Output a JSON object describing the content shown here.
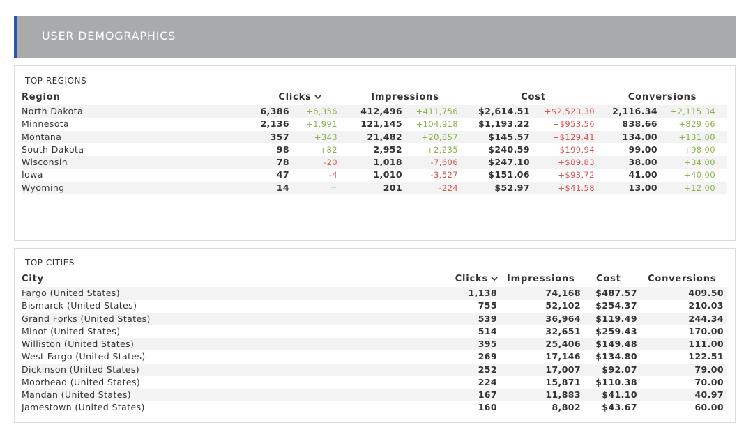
{
  "header": {
    "title": "USER DEMOGRAPHICS"
  },
  "regions": {
    "title": "TOP REGIONS",
    "headers": [
      "Region",
      "Clicks",
      "Impressions",
      "Cost",
      "Conversions"
    ],
    "delta_up_colors": [
      "#8ab34a",
      "#8ab34a",
      "#d9534f",
      "#8ab34a"
    ],
    "delta_down_colors": [
      "#d9534f",
      "#d9534f",
      "#8ab34a",
      "#d9534f"
    ],
    "rows": [
      [
        "North Dakota",
        "6,386",
        "+6,356",
        "412,496",
        "+411,756",
        "$2,614.51",
        "+$2,523.30",
        "2,116.34",
        "+2,115.34"
      ],
      [
        "Minnesota",
        "2,136",
        "+1,991",
        "121,145",
        "+104,918",
        "$1,193.22",
        "+$953.56",
        "838.66",
        "+829.66"
      ],
      [
        "Montana",
        "357",
        "+343",
        "21,482",
        "+20,857",
        "$145.57",
        "+$129.41",
        "134.00",
        "+131.00"
      ],
      [
        "South Dakota",
        "98",
        "+82",
        "2,952",
        "+2,235",
        "$240.59",
        "+$199.94",
        "99.00",
        "+98.00"
      ],
      [
        "Wisconsin",
        "78",
        "-20",
        "1,018",
        "-7,606",
        "$247.10",
        "+$89.83",
        "38.00",
        "+34.00"
      ],
      [
        "Iowa",
        "47",
        "-4",
        "1,010",
        "-3,527",
        "$151.06",
        "+$93.72",
        "41.00",
        "+40.00"
      ],
      [
        "Wyoming",
        "14",
        "=",
        "201",
        "-224",
        "$52.97",
        "+$41.58",
        "13.00",
        "+12.00"
      ]
    ]
  },
  "cities": {
    "title": "TOP CITIES",
    "headers": [
      "City",
      "Clicks",
      "Impressions",
      "Cost",
      "Conversions"
    ],
    "rows": [
      [
        "Fargo (United States)",
        "1,138",
        "74,168",
        "$487.57",
        "409.50"
      ],
      [
        "Bismarck (United States)",
        "755",
        "52,102",
        "$254.37",
        "210.03"
      ],
      [
        "Grand Forks (United States)",
        "539",
        "36,964",
        "$119.49",
        "244.34"
      ],
      [
        "Minot (United States)",
        "514",
        "32,651",
        "$259.43",
        "170.00"
      ],
      [
        "Williston (United States)",
        "395",
        "25,406",
        "$149.48",
        "111.00"
      ],
      [
        "West Fargo (United States)",
        "269",
        "17,146",
        "$134.80",
        "122.51"
      ],
      [
        "Dickinson (United States)",
        "252",
        "17,007",
        "$92.07",
        "79.00"
      ],
      [
        "Moorhead (United States)",
        "224",
        "15,871",
        "$110.38",
        "70.00"
      ],
      [
        "Mandan (United States)",
        "167",
        "11,883",
        "$41.10",
        "40.97"
      ],
      [
        "Jamestown (United States)",
        "160",
        "8,802",
        "$43.67",
        "60.00"
      ]
    ]
  }
}
